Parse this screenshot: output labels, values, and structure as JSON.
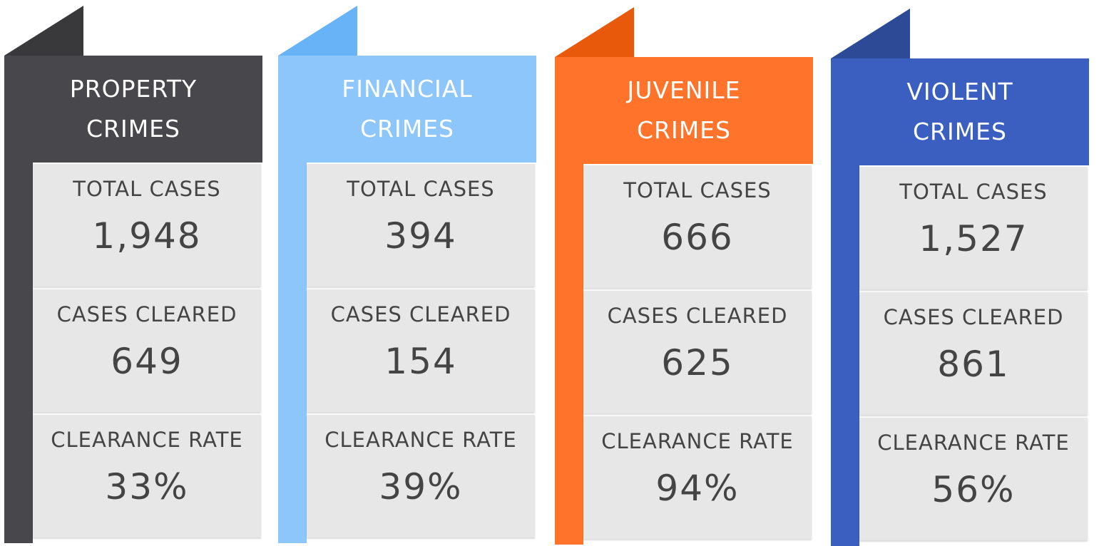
{
  "cards": [
    {
      "title": [
        "PROPERTY",
        "CRIMES"
      ],
      "stats": [
        {
          "label": "TOTAL CASES",
          "value": "1,948"
        },
        {
          "label": "CASES CLEARED",
          "value": "649"
        },
        {
          "label": "CLEARANCE RATE",
          "value": "33%"
        }
      ]
    },
    {
      "title": [
        "FINANCIAL",
        "CRIMES"
      ],
      "stats": [
        {
          "label": "TOTAL CASES",
          "value": "394"
        },
        {
          "label": "CASES CLEARED",
          "value": "154"
        },
        {
          "label": "CLEARANCE RATE",
          "value": "39%"
        }
      ]
    },
    {
      "title": [
        "JUVENILE",
        "CRIMES"
      ],
      "stats": [
        {
          "label": "TOTAL CASES",
          "value": "666"
        },
        {
          "label": "CASES CLEARED",
          "value": "625"
        },
        {
          "label": "CLEARANCE RATE",
          "value": "94%"
        }
      ]
    },
    {
      "title": [
        "VIOLENT",
        "CRIMES"
      ],
      "stats": [
        {
          "label": "TOTAL CASES",
          "value": "1,527"
        },
        {
          "label": "CASES CLEARED",
          "value": "861"
        },
        {
          "label": "CLEARANCE RATE",
          "value": "56%"
        }
      ]
    }
  ]
}
